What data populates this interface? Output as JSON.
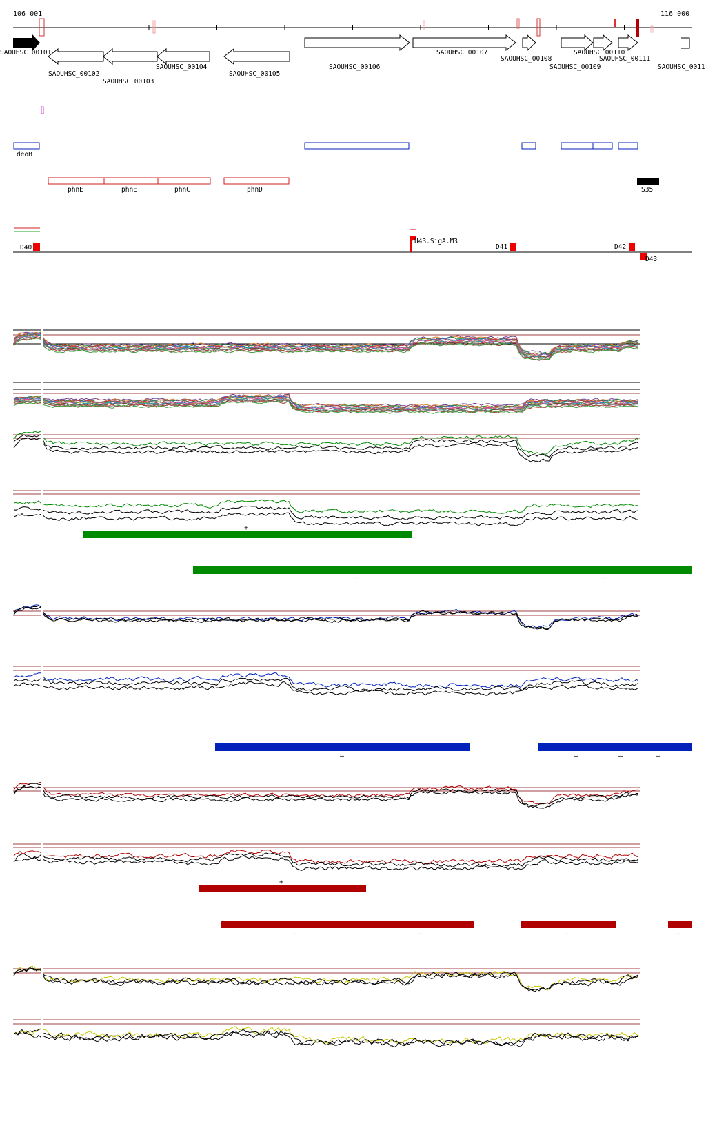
{
  "ruler": {
    "start_label": "106 001",
    "end_label": "116 000"
  },
  "genes": [
    {
      "label": "SAOUHSC_00101",
      "strand": "+",
      "filled": true
    },
    {
      "label": "SAOUHSC_00102",
      "strand": "-"
    },
    {
      "label": "SAOUHSC_00103",
      "strand": "-"
    },
    {
      "label": "SAOUHSC_00104",
      "strand": "-"
    },
    {
      "label": "SAOUHSC_00105",
      "strand": "-"
    },
    {
      "label": "SAOUHSC_00106",
      "strand": "+"
    },
    {
      "label": "SAOUHSC_00107",
      "strand": "+"
    },
    {
      "label": "SAOUHSC_00108",
      "strand": "+"
    },
    {
      "label": "SAOUHSC_00109",
      "strand": "+"
    },
    {
      "label": "SAOUHSC_00110",
      "strand": "+"
    },
    {
      "label": "SAOUHSC_00111",
      "strand": "+"
    },
    {
      "label": "SAOUHSC_0011",
      "strand": "+"
    }
  ],
  "blue_features": [
    {
      "label": "deoB"
    }
  ],
  "red_features": [
    {
      "label": "phnE"
    },
    {
      "label": "phnE"
    },
    {
      "label": "phnC"
    },
    {
      "label": "phnD"
    }
  ],
  "black_feature": {
    "label": "S35"
  },
  "promoters": [
    {
      "label": "D40"
    },
    {
      "label": "U43.SigA.M3"
    },
    {
      "label": "D41"
    },
    {
      "label": "D42"
    },
    {
      "label": "D43"
    }
  ],
  "segment_marks": {
    "green_plus": "+",
    "green_minus_1": "–",
    "green_minus_2": "–",
    "blue_minus_1": "–",
    "blue_minus_2": "–",
    "blue_minus_3": "–",
    "blue_minus_4": "–",
    "red_plus": "+",
    "red_minus_1": "–",
    "red_minus_2": "–",
    "red_minus_3": "–",
    "red_minus_4": "–"
  },
  "colors": {
    "green": "#008a00",
    "blue": "#0022bb",
    "red": "#b00000",
    "yellow": "#c8c800",
    "black": "#000000",
    "baseline": "#a04040"
  }
}
